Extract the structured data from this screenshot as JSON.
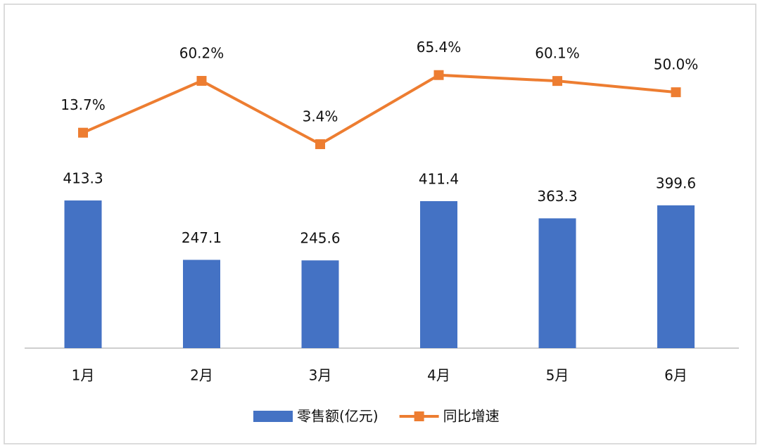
{
  "chart_data": {
    "type": "bar-line",
    "categories": [
      "1月",
      "2月",
      "3月",
      "4月",
      "5月",
      "6月"
    ],
    "series": [
      {
        "name": "零售额(亿元)",
        "type": "bar",
        "color": "#4472c4",
        "values": [
          413.3,
          247.1,
          245.6,
          411.4,
          363.3,
          399.6
        ]
      },
      {
        "name": "同比增速",
        "type": "line",
        "axis": "y2",
        "color": "#ed7d31",
        "values": [
          13.7,
          60.2,
          3.4,
          65.4,
          60.1,
          50.0
        ],
        "value_labels": [
          "13.7%",
          "60.2%",
          "3.4%",
          "65.4%",
          "60.1%",
          "50.0%"
        ]
      }
    ],
    "legend": "bottom"
  }
}
